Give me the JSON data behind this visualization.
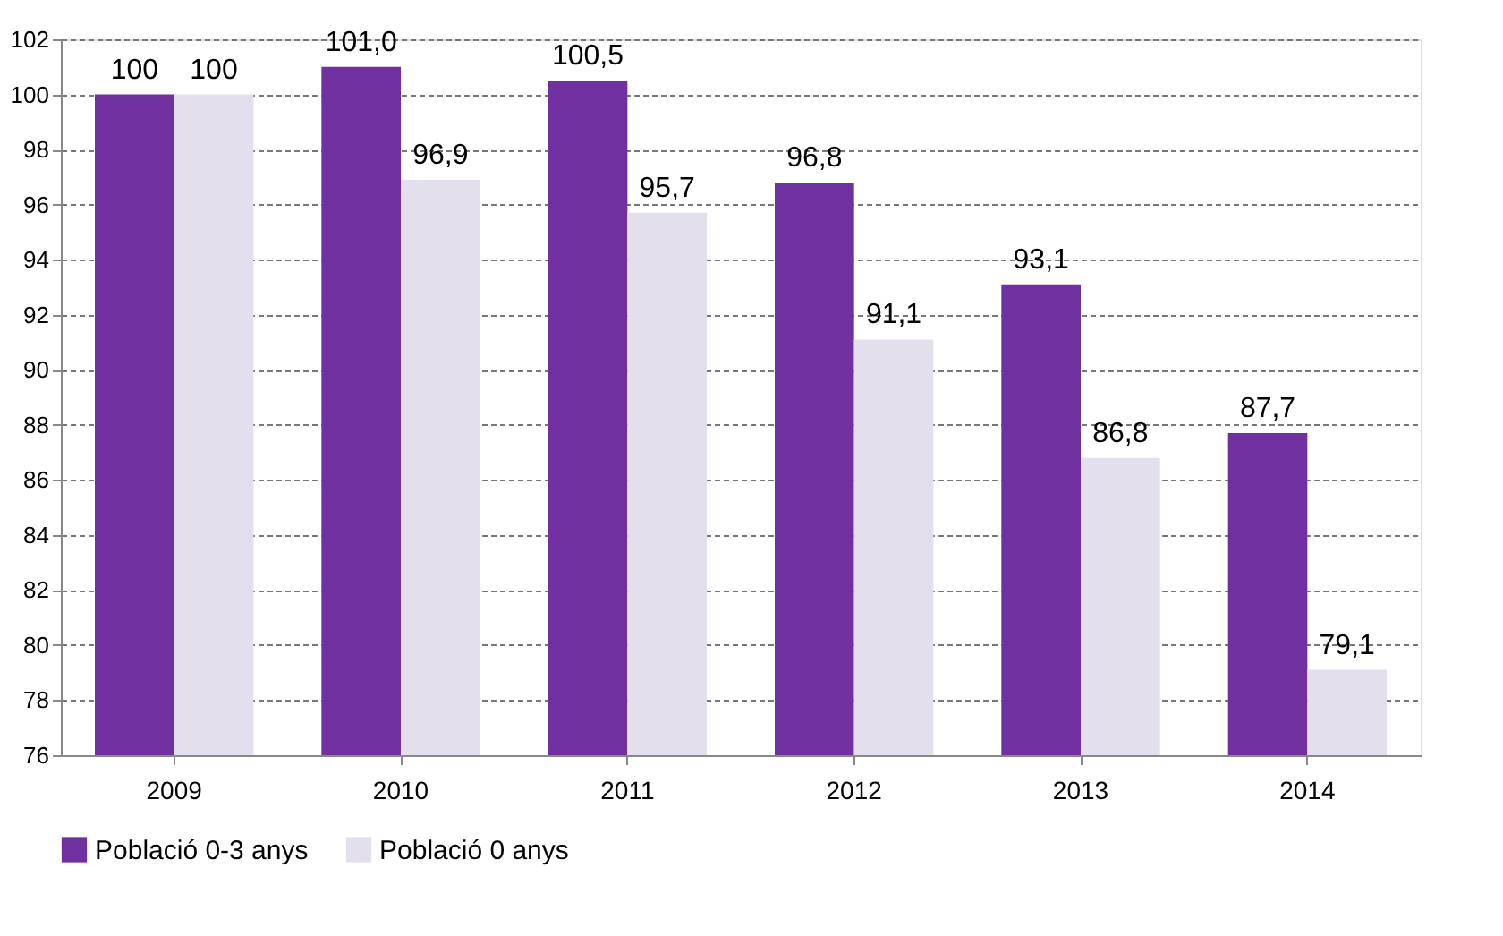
{
  "chart_data": {
    "type": "bar",
    "categories": [
      "2009",
      "2010",
      "2011",
      "2012",
      "2013",
      "2014"
    ],
    "series": [
      {
        "name": "Població 0-3 anys",
        "color": "#7030a0",
        "values": [
          100,
          101.0,
          100.5,
          96.8,
          93.1,
          87.7
        ],
        "value_labels": [
          "100",
          "101,0",
          "100,5",
          "96,8",
          "93,1",
          "87,7"
        ]
      },
      {
        "name": "Població 0 anys",
        "color": "#e4dfec",
        "values": [
          100,
          96.9,
          95.7,
          91.1,
          86.8,
          79.1
        ],
        "value_labels": [
          "100",
          "96,9",
          "95,7",
          "91,1",
          "86,8",
          "79,1"
        ]
      }
    ],
    "ylim": [
      76,
      102
    ],
    "yticks": [
      76,
      78,
      80,
      82,
      84,
      86,
      88,
      90,
      92,
      94,
      96,
      98,
      100,
      102
    ],
    "grid": "y",
    "legend": "bottom"
  }
}
